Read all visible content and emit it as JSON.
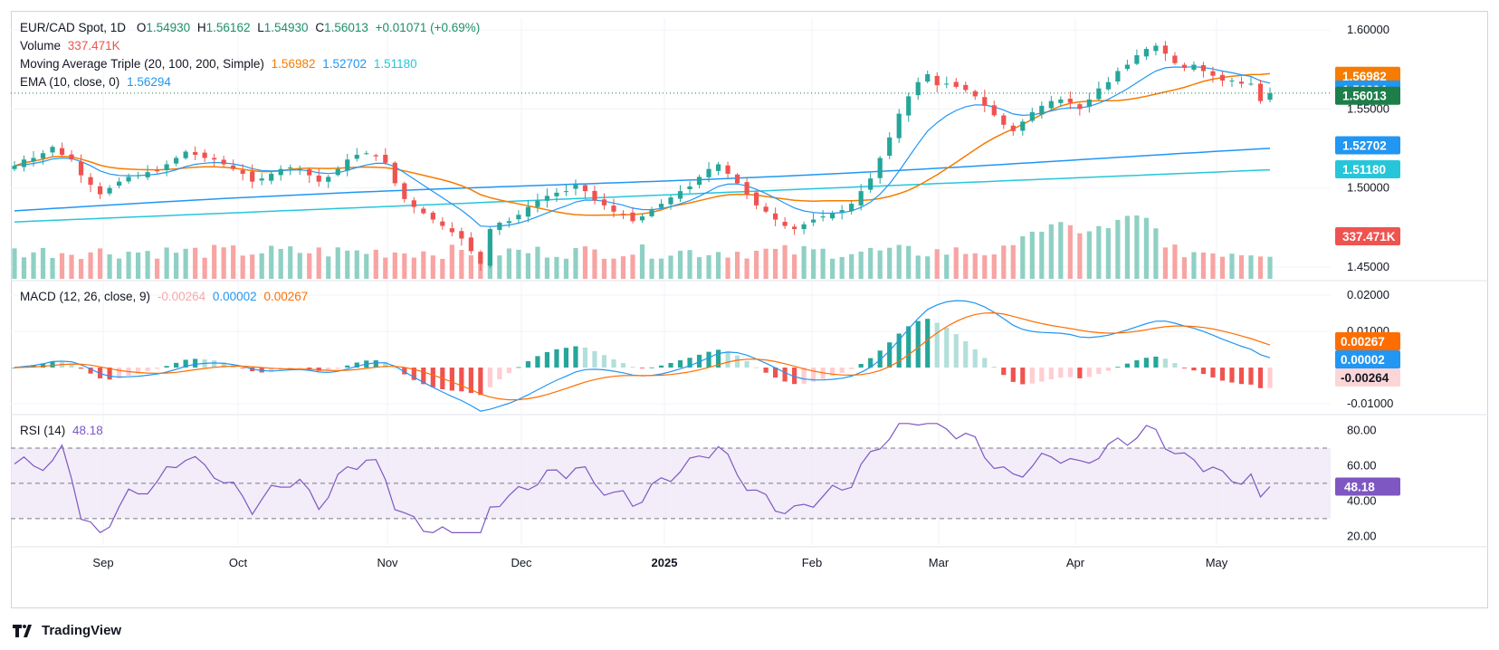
{
  "header": {
    "symbol": "EUR/CAD Spot, 1D",
    "open_label": "O",
    "open": "1.54930",
    "high_label": "H",
    "high": "1.56162",
    "low_label": "L",
    "low": "1.54930",
    "close_label": "C",
    "close": "1.56013",
    "change": "+0.01071 (+0.69%)",
    "volume_label": "Volume",
    "volume_value": "337.471K",
    "ma_label": "Moving Average Triple (20, 100, 200, Simple)",
    "ma20": "1.56982",
    "ma100": "1.52702",
    "ma200": "1.51180",
    "ema_label": "EMA (10, close, 0)",
    "ema_value": "1.56294"
  },
  "macd_legend": {
    "label": "MACD (12, 26, close, 9)",
    "hist": "-0.00264",
    "macd": "0.00002",
    "signal": "0.00267"
  },
  "rsi_legend": {
    "label": "RSI (14)",
    "value": "48.18"
  },
  "brand": "TradingView",
  "colors": {
    "up": "#26a69a",
    "down": "#ef5350",
    "ma20": "#f57c00",
    "ma100": "#2196f3",
    "ma200": "#26c6da",
    "ema": "#2196f3",
    "rsi": "#7e57c2",
    "macd": "#2196f3",
    "signal": "#ff6d00"
  },
  "chart_data": [
    {
      "type": "candlestick",
      "title": "EUR/CAD Spot, 1D",
      "x_ticks": [
        "Sep",
        "Oct",
        "Nov",
        "Dec",
        "2025",
        "Feb",
        "Mar",
        "Apr",
        "May"
      ],
      "y_ticks": [
        "1.60000",
        "1.55000",
        "1.50000",
        "1.45000"
      ],
      "ylim": [
        1.4425,
        1.6075
      ],
      "price_labels": [
        {
          "name": "MA 20",
          "value": "1.56982",
          "color": "#f57c00"
        },
        {
          "name": "EMA 10",
          "value": "1.56294",
          "color": "#2196f3"
        },
        {
          "name": "Close",
          "value": "1.56013",
          "color": "#1e7e4a"
        },
        {
          "name": "MA 100",
          "value": "1.52702",
          "color": "#2196f3"
        },
        {
          "name": "MA 200",
          "value": "1.51180",
          "color": "#26c6da"
        },
        {
          "name": "Volume",
          "value": "337.471K",
          "color": "#ef5350"
        }
      ],
      "close_series": [
        1.514,
        1.518,
        1.519,
        1.522,
        1.526,
        1.521,
        1.518,
        1.508,
        1.502,
        1.496,
        1.5,
        1.504,
        1.507,
        1.508,
        1.51,
        1.511,
        1.515,
        1.519,
        1.523,
        1.521,
        1.519,
        1.518,
        1.515,
        1.512,
        1.509,
        1.504,
        1.506,
        1.509,
        1.512,
        1.513,
        1.512,
        1.508,
        1.504,
        1.507,
        1.512,
        1.518,
        1.521,
        1.522,
        1.52,
        1.516,
        1.503,
        1.493,
        1.488,
        1.484,
        1.48,
        1.476,
        1.472,
        1.468,
        1.46,
        1.452,
        1.474,
        1.478,
        1.479,
        1.483,
        1.488,
        1.492,
        1.495,
        1.497,
        1.498,
        1.502,
        1.498,
        1.492,
        1.489,
        1.485,
        1.483,
        1.479,
        1.482,
        1.486,
        1.49,
        1.494,
        1.498,
        1.501,
        1.507,
        1.512,
        1.515,
        1.509,
        1.503,
        1.496,
        1.489,
        1.485,
        1.48,
        1.476,
        1.474,
        1.477,
        1.48,
        1.482,
        1.484,
        1.486,
        1.49,
        1.498,
        1.506,
        1.519,
        1.532,
        1.547,
        1.558,
        1.567,
        1.572,
        1.565,
        1.566,
        1.564,
        1.562,
        1.558,
        1.552,
        1.546,
        1.54,
        1.536,
        1.542,
        1.548,
        1.552,
        1.555,
        1.556,
        1.554,
        1.55,
        1.556,
        1.563,
        1.567,
        1.574,
        1.578,
        1.584,
        1.588,
        1.59,
        1.585,
        1.579,
        1.576,
        1.578,
        1.574,
        1.571,
        1.568,
        1.568,
        1.566,
        1.566,
        1.555,
        1.56
      ],
      "volume_relative": "bars scaled to 0..1",
      "rsi_ylim": [
        15,
        88
      ],
      "rsi_ticks": [
        "80.00",
        "60.00",
        "40.00",
        "20.00"
      ],
      "rsi_bands": [
        70,
        50,
        30
      ],
      "macd_ticks": [
        "0.02000",
        "0.01000",
        "-0.01000"
      ],
      "macd_ylim": [
        -0.0125,
        0.0235
      ]
    }
  ]
}
